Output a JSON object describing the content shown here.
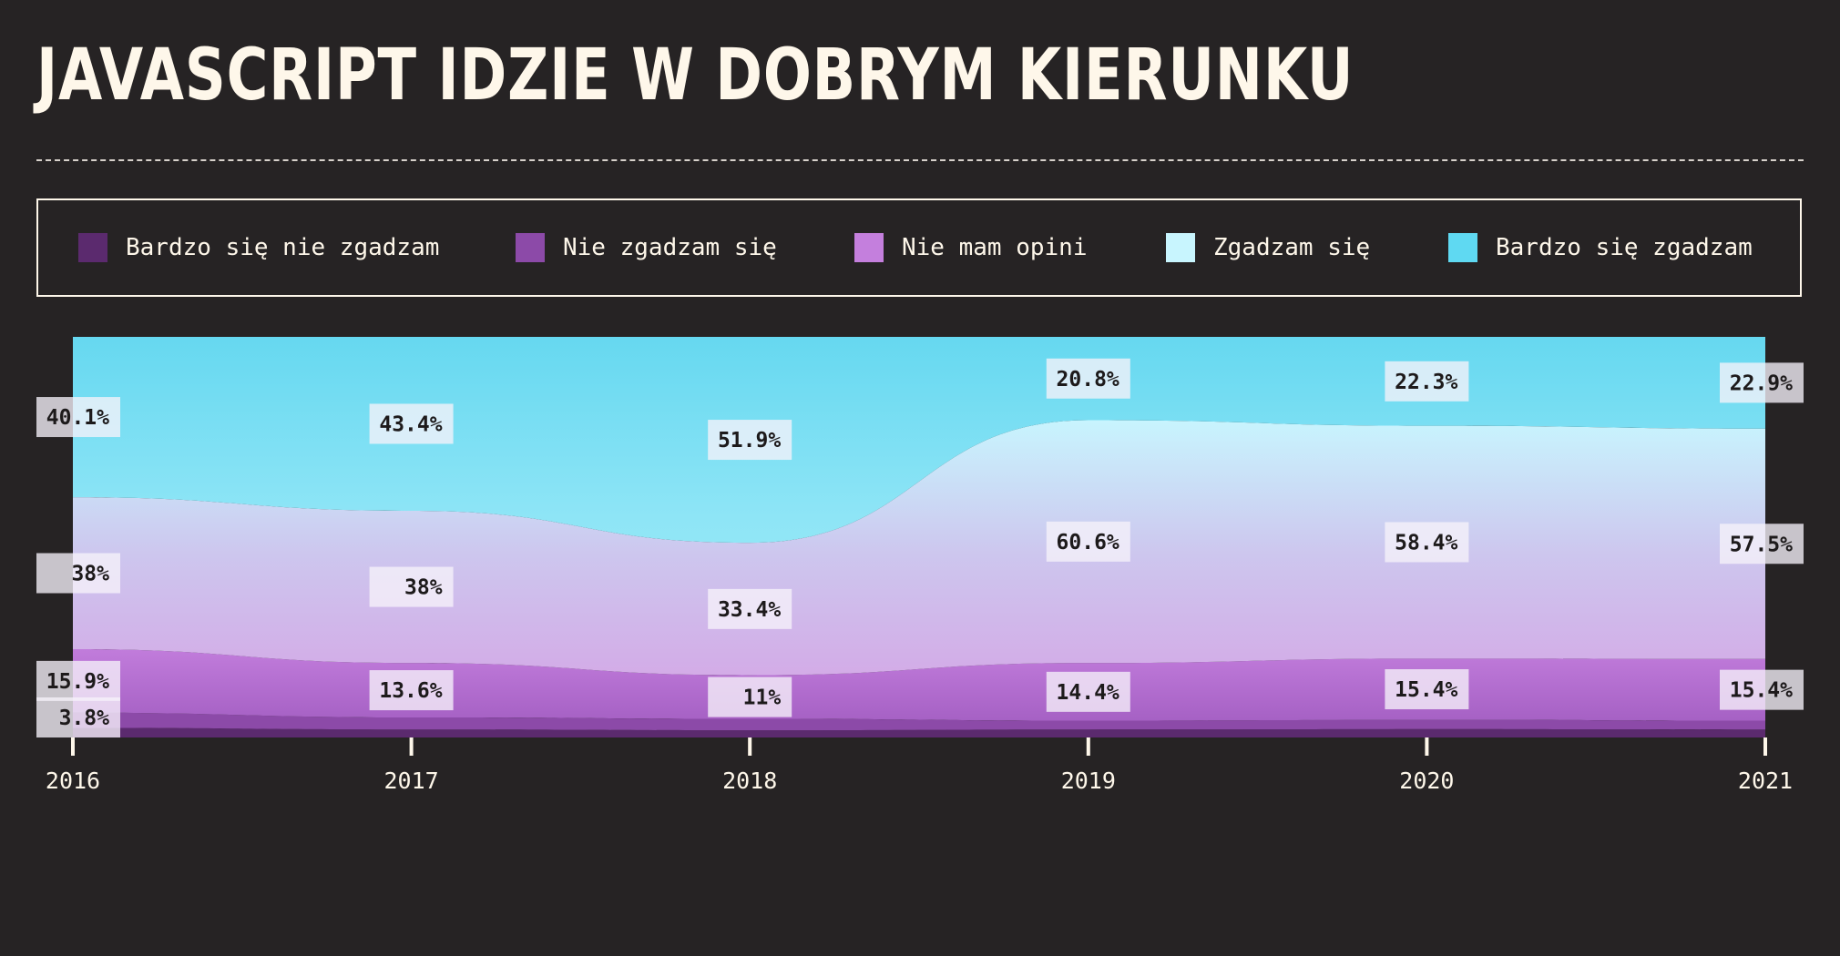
{
  "chart_data": {
    "type": "area",
    "title": "JAVASCRIPT IDZIE W DOBRYM KIERUNKU",
    "x": [
      "2016",
      "2017",
      "2018",
      "2019",
      "2020",
      "2021"
    ],
    "ylim": [
      0,
      100
    ],
    "stacked": true,
    "legend_position": "top",
    "series": [
      {
        "name": "Bardzo się nie zgadzam",
        "color": "#5b2a6e",
        "values": [
          2.4,
          2.0,
          1.8,
          2.0,
          2.1,
          2.0
        ],
        "labels": [
          "",
          "",
          "",
          "",
          "",
          ""
        ]
      },
      {
        "name": "Nie zgadzam się",
        "color": "#8c4aa8",
        "values": [
          3.8,
          3.0,
          2.9,
          2.2,
          2.3,
          2.2
        ],
        "labels": [
          "3.8%",
          "",
          "",
          "",
          "",
          ""
        ]
      },
      {
        "name": "Nie mam opini",
        "color": "#c47fdd",
        "values": [
          15.9,
          13.6,
          11,
          14.4,
          15.4,
          15.4
        ],
        "labels": [
          "15.9%",
          "13.6%",
          "11%",
          "14.4%",
          "15.4%",
          "15.4%"
        ]
      },
      {
        "name": "Zgadzam się",
        "color": "#c8f5fe",
        "values": [
          38,
          38,
          33.4,
          60.6,
          58.4,
          57.5
        ],
        "labels": [
          "38%",
          "38%",
          "33.4%",
          "60.6%",
          "58.4%",
          "57.5%"
        ]
      },
      {
        "name": "Bardzo się zgadzam",
        "color": "#5fd9f2",
        "values": [
          40.1,
          43.4,
          51.9,
          20.8,
          22.3,
          22.9
        ],
        "labels": [
          "40.1%",
          "43.4%",
          "51.9%",
          "20.8%",
          "22.3%",
          "22.9%"
        ]
      }
    ]
  }
}
